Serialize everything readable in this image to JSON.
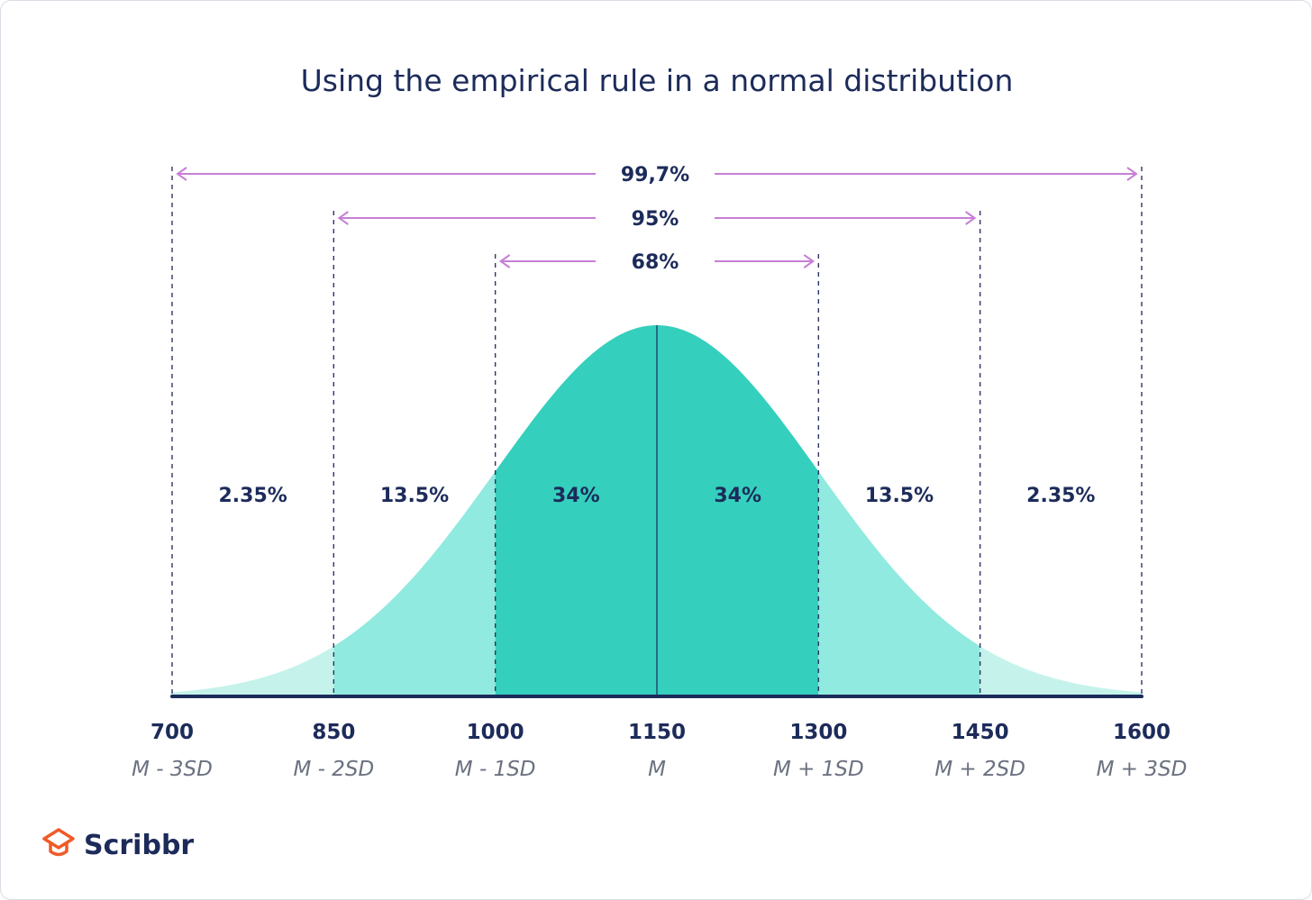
{
  "chart_data": {
    "type": "area",
    "title": "Using the empirical rule in a normal distribution",
    "mean": 1150,
    "sd": 150,
    "xlim": [
      700,
      1600
    ],
    "x_ticks": [
      {
        "value": 700,
        "label": "700",
        "sub": "M - 3SD"
      },
      {
        "value": 850,
        "label": "850",
        "sub": "M - 2SD"
      },
      {
        "value": 1000,
        "label": "1000",
        "sub": "M - 1SD"
      },
      {
        "value": 1150,
        "label": "1150",
        "sub": "M"
      },
      {
        "value": 1300,
        "label": "1300",
        "sub": "M + 1SD"
      },
      {
        "value": 1450,
        "label": "1450",
        "sub": "M + 2SD"
      },
      {
        "value": 1600,
        "label": "1600",
        "sub": "M + 3SD"
      }
    ],
    "regions": [
      {
        "from": 700,
        "to": 850,
        "label": "2.35%",
        "color": "#c5f3eb"
      },
      {
        "from": 850,
        "to": 1000,
        "label": "13.5%",
        "color": "#90eadf"
      },
      {
        "from": 1000,
        "to": 1150,
        "label": "34%",
        "color": "#35cfbd"
      },
      {
        "from": 1150,
        "to": 1300,
        "label": "34%",
        "color": "#35cfbd"
      },
      {
        "from": 1300,
        "to": 1450,
        "label": "13.5%",
        "color": "#90eadf"
      },
      {
        "from": 1450,
        "to": 1600,
        "label": "2.35%",
        "color": "#c5f3eb"
      }
    ],
    "intervals": [
      {
        "from": 700,
        "to": 1600,
        "label": "99,7%"
      },
      {
        "from": 850,
        "to": 1450,
        "label": "95%"
      },
      {
        "from": 1000,
        "to": 1300,
        "label": "68%"
      }
    ],
    "colors": {
      "text": "#1c2b5a",
      "subtext": "#6b7180",
      "axis": "#1c2b5a",
      "arrow": "#c77fd6",
      "dashed": "#2c3565"
    }
  },
  "logo": {
    "text": "Scribbr",
    "color": "#f05a28"
  }
}
